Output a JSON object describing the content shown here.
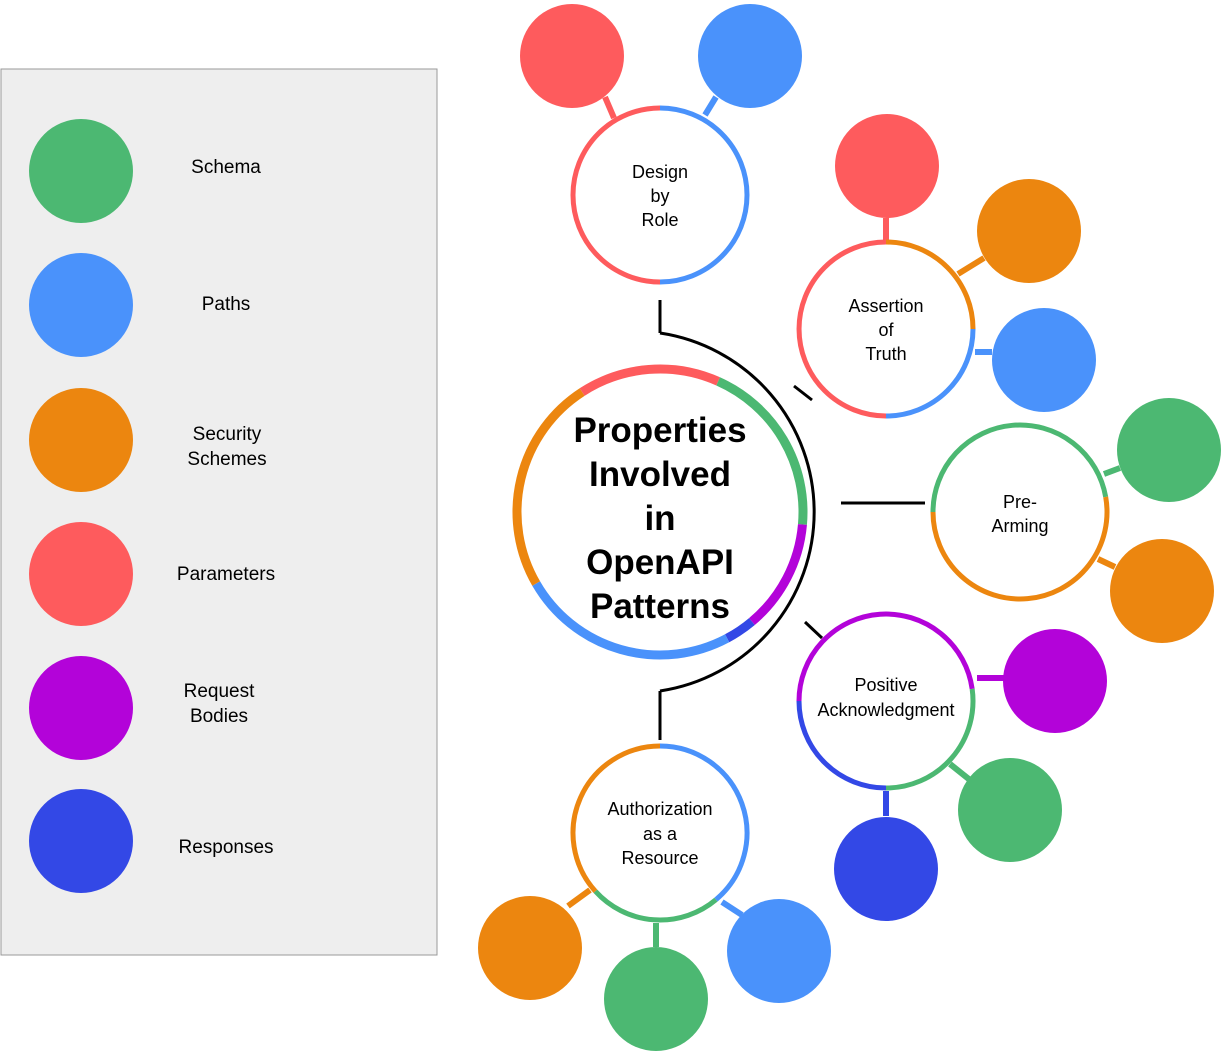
{
  "colors": {
    "schema": "#4cb872",
    "paths": "#4a92fb",
    "security": "#ec860f",
    "parameters": "#fe5b5d",
    "request": "#b303d9",
    "responses": "#3348e6",
    "legend_bg": "#eeeeee",
    "legend_border": "#999999",
    "line": "#000000"
  },
  "legend": {
    "items": [
      {
        "key": "schema",
        "lines": [
          "Schema"
        ]
      },
      {
        "key": "paths",
        "lines": [
          "Paths"
        ]
      },
      {
        "key": "security",
        "lines": [
          "Security",
          "Schemes"
        ]
      },
      {
        "key": "parameters",
        "lines": [
          "Parameters"
        ]
      },
      {
        "key": "request",
        "lines": [
          "Request",
          "Bodies"
        ]
      },
      {
        "key": "responses",
        "lines": [
          "Responses"
        ]
      }
    ]
  },
  "center": {
    "lines": [
      "Properties",
      "Involved",
      "in",
      "OpenAPI",
      "Patterns"
    ],
    "ring": [
      "parameters",
      "schema",
      "request",
      "responses",
      "paths",
      "security"
    ]
  },
  "patterns": [
    {
      "id": "design-by-role",
      "lines": [
        "Design",
        "by",
        "Role"
      ],
      "ring": [
        "parameters",
        "paths"
      ],
      "satellites": [
        "parameters",
        "paths"
      ]
    },
    {
      "id": "assertion-of-truth",
      "lines": [
        "Assertion",
        "of",
        "Truth"
      ],
      "ring": [
        "parameters",
        "security",
        "paths"
      ],
      "satellites": [
        "parameters",
        "security",
        "paths"
      ]
    },
    {
      "id": "pre-arming",
      "lines": [
        "Pre-",
        "Arming"
      ],
      "ring": [
        "schema",
        "security"
      ],
      "satellites": [
        "schema",
        "security"
      ]
    },
    {
      "id": "positive-acknowledgment",
      "lines": [
        "Positive",
        "Acknowledgment"
      ],
      "ring": [
        "request",
        "schema",
        "responses"
      ],
      "satellites": [
        "request",
        "schema",
        "responses"
      ]
    },
    {
      "id": "authorization-as-a-resource",
      "lines": [
        "Authorization",
        "as a",
        "Resource"
      ],
      "ring": [
        "paths",
        "schema",
        "security"
      ],
      "satellites": [
        "security",
        "schema",
        "paths"
      ]
    }
  ]
}
